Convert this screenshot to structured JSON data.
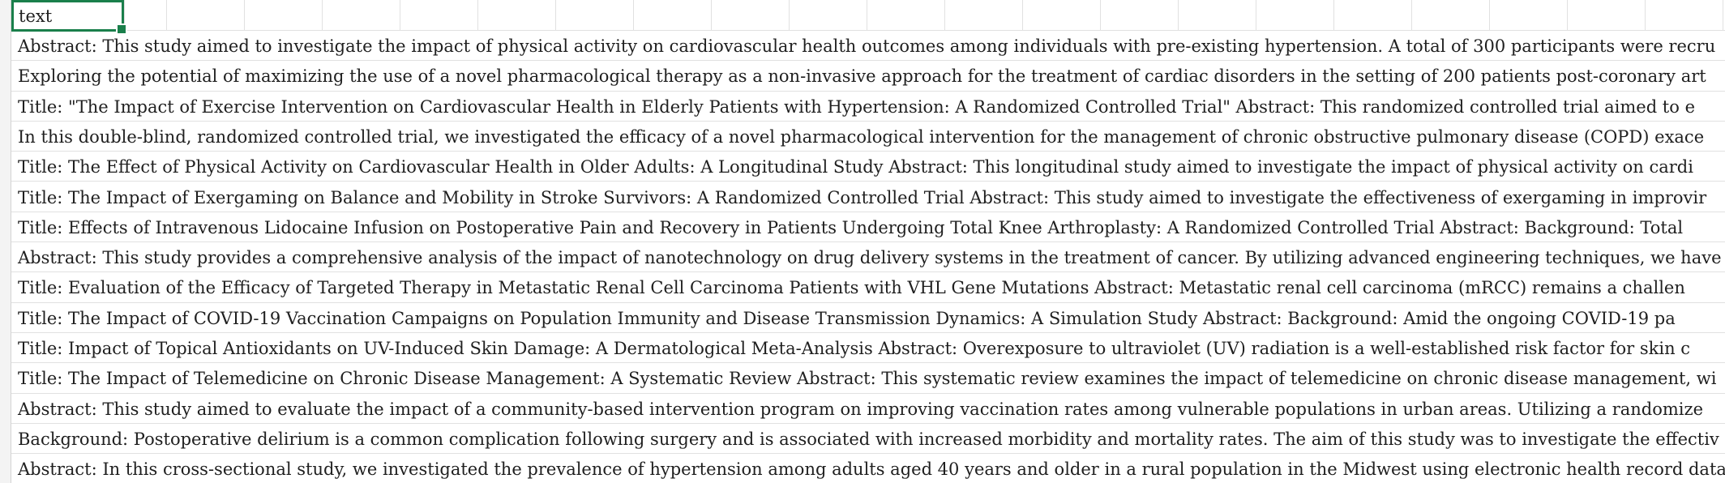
{
  "spreadsheet": {
    "header_cell": "text",
    "rows": [
      "Abstract: This study aimed to investigate the impact of physical activity on cardiovascular health outcomes among individuals with pre-existing hypertension. A total of 300 participants were recru",
      "Exploring the potential of maximizing the use of a novel pharmacological therapy as a non-invasive approach for the treatment of cardiac disorders in the setting of 200 patients post-coronary art",
      "Title: \"The Impact of Exercise Intervention on Cardiovascular Health in Elderly Patients with Hypertension: A Randomized Controlled Trial\" Abstract: This randomized controlled trial aimed to e",
      "In this double-blind, randomized controlled trial, we investigated the efficacy of a novel pharmacological intervention for the management of chronic obstructive pulmonary disease (COPD) exace",
      "Title: The Effect of Physical Activity on Cardiovascular Health in Older Adults: A Longitudinal Study Abstract: This longitudinal study aimed to investigate the impact of physical activity on cardi",
      "Title: The Impact of Exergaming on Balance and Mobility in Stroke Survivors: A Randomized Controlled Trial Abstract: This study aimed to investigate the effectiveness of exergaming in improvir",
      "Title: Effects of Intravenous Lidocaine Infusion on Postoperative Pain and Recovery in Patients Undergoing Total Knee Arthroplasty: A Randomized Controlled Trial Abstract: Background: Total",
      "Abstract: This study provides a comprehensive analysis of the impact of nanotechnology on drug delivery systems in the treatment of cancer. By utilizing advanced engineering techniques, we have",
      "Title: Evaluation of the Efficacy of Targeted Therapy in Metastatic Renal Cell Carcinoma Patients with VHL Gene Mutations Abstract: Metastatic renal cell carcinoma (mRCC) remains a challen",
      "Title: The Impact of COVID-19 Vaccination Campaigns on Population Immunity and Disease Transmission Dynamics: A Simulation Study Abstract: Background: Amid the ongoing COVID-19 pa",
      "Title: Impact of Topical Antioxidants on UV-Induced Skin Damage: A Dermatological Meta-Analysis Abstract: Overexposure to ultraviolet (UV) radiation is a well-established risk factor for skin c",
      "Title: The Impact of Telemedicine on Chronic Disease Management: A Systematic Review Abstract: This systematic review examines the impact of telemedicine on chronic disease management, wi",
      "Abstract: This study aimed to evaluate the impact of a community-based intervention program on improving vaccination rates among vulnerable populations in urban areas. Utilizing a randomize",
      "Background: Postoperative delirium is a common complication following surgery and is associated with increased morbidity and mortality rates. The aim of this study was to investigate the effectiv",
      "Abstract: In this cross-sectional study, we investigated the prevalence of hypertension among adults aged 40 years and older in a rural population in the Midwest using electronic health record data"
    ]
  },
  "colors": {
    "active_border": "#1a7f4b",
    "gridline": "#e1e1e1",
    "text": "#1f1f1f"
  }
}
